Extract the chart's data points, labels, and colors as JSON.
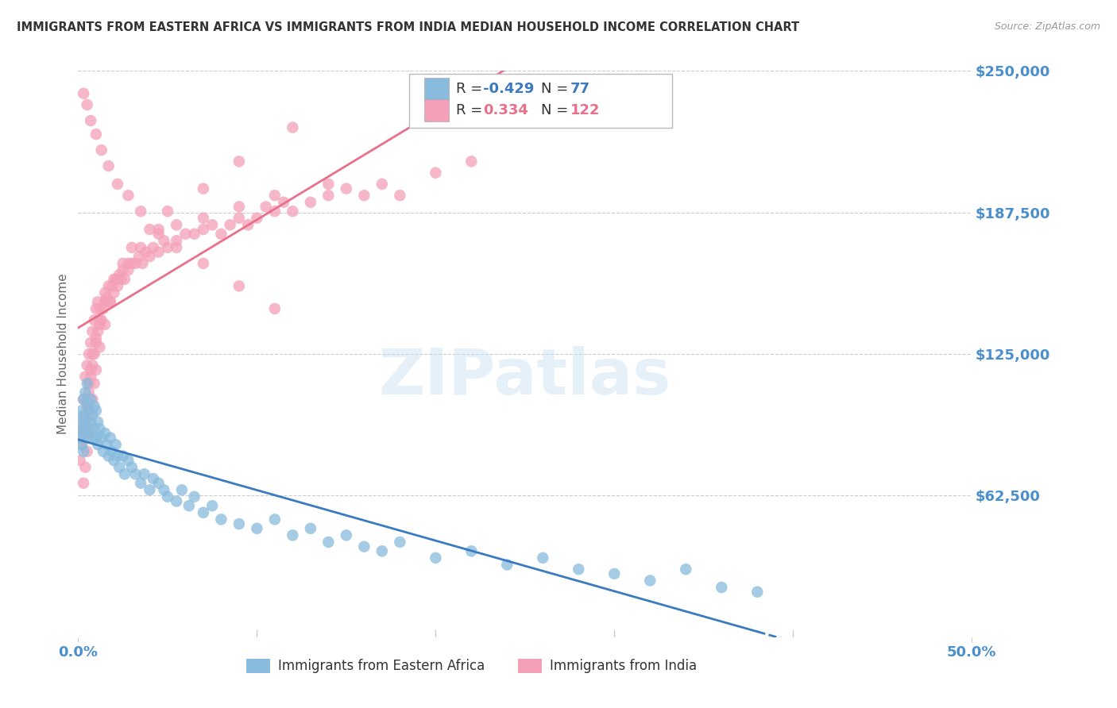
{
  "title": "IMMIGRANTS FROM EASTERN AFRICA VS IMMIGRANTS FROM INDIA MEDIAN HOUSEHOLD INCOME CORRELATION CHART",
  "source": "Source: ZipAtlas.com",
  "ylabel": "Median Household Income",
  "yticks": [
    0,
    62500,
    125000,
    187500,
    250000
  ],
  "ytick_labels": [
    "",
    "$62,500",
    "$125,000",
    "$187,500",
    "$250,000"
  ],
  "xlim": [
    0.0,
    0.5
  ],
  "ylim": [
    0,
    250000
  ],
  "blue_R": -0.429,
  "blue_N": 77,
  "pink_R": 0.334,
  "pink_N": 122,
  "blue_color": "#88bbdd",
  "pink_color": "#f4a0b8",
  "blue_line_color": "#3a7abf",
  "pink_line_color": "#e8708a",
  "legend_label_blue": "Immigrants from Eastern Africa",
  "legend_label_pink": "Immigrants from India",
  "watermark": "ZIPatlas",
  "background_color": "#ffffff",
  "grid_color": "#cccccc",
  "title_color": "#333333",
  "axis_label_color": "#4a8fcc",
  "axis_tick_color": "#4a8fcc",
  "blue_scatter_x": [
    0.001,
    0.001,
    0.002,
    0.002,
    0.002,
    0.003,
    0.003,
    0.003,
    0.003,
    0.004,
    0.004,
    0.005,
    0.005,
    0.005,
    0.006,
    0.006,
    0.007,
    0.007,
    0.008,
    0.008,
    0.009,
    0.009,
    0.01,
    0.01,
    0.011,
    0.011,
    0.012,
    0.013,
    0.014,
    0.015,
    0.016,
    0.017,
    0.018,
    0.019,
    0.02,
    0.021,
    0.022,
    0.023,
    0.025,
    0.026,
    0.028,
    0.03,
    0.032,
    0.035,
    0.037,
    0.04,
    0.042,
    0.045,
    0.048,
    0.05,
    0.055,
    0.058,
    0.062,
    0.065,
    0.07,
    0.075,
    0.08,
    0.09,
    0.1,
    0.11,
    0.12,
    0.13,
    0.14,
    0.15,
    0.16,
    0.17,
    0.18,
    0.2,
    0.22,
    0.24,
    0.26,
    0.28,
    0.3,
    0.32,
    0.34,
    0.36,
    0.38
  ],
  "blue_scatter_y": [
    95000,
    88000,
    100000,
    92000,
    85000,
    105000,
    98000,
    90000,
    82000,
    108000,
    95000,
    112000,
    103000,
    88000,
    100000,
    92000,
    105000,
    95000,
    98000,
    88000,
    102000,
    92000,
    100000,
    88000,
    95000,
    85000,
    92000,
    88000,
    82000,
    90000,
    85000,
    80000,
    88000,
    82000,
    78000,
    85000,
    80000,
    75000,
    80000,
    72000,
    78000,
    75000,
    72000,
    68000,
    72000,
    65000,
    70000,
    68000,
    65000,
    62000,
    60000,
    65000,
    58000,
    62000,
    55000,
    58000,
    52000,
    50000,
    48000,
    52000,
    45000,
    48000,
    42000,
    45000,
    40000,
    38000,
    42000,
    35000,
    38000,
    32000,
    35000,
    30000,
    28000,
    25000,
    30000,
    22000,
    20000
  ],
  "pink_scatter_x": [
    0.001,
    0.002,
    0.003,
    0.003,
    0.004,
    0.004,
    0.005,
    0.005,
    0.006,
    0.006,
    0.007,
    0.007,
    0.008,
    0.008,
    0.009,
    0.009,
    0.01,
    0.01,
    0.011,
    0.011,
    0.012,
    0.012,
    0.013,
    0.014,
    0.015,
    0.015,
    0.016,
    0.017,
    0.018,
    0.019,
    0.02,
    0.021,
    0.022,
    0.023,
    0.024,
    0.025,
    0.026,
    0.028,
    0.03,
    0.032,
    0.034,
    0.036,
    0.038,
    0.04,
    0.042,
    0.045,
    0.048,
    0.05,
    0.055,
    0.06,
    0.065,
    0.07,
    0.075,
    0.08,
    0.085,
    0.09,
    0.095,
    0.1,
    0.105,
    0.11,
    0.115,
    0.12,
    0.13,
    0.14,
    0.15,
    0.16,
    0.17,
    0.18,
    0.2,
    0.22,
    0.003,
    0.004,
    0.005,
    0.006,
    0.007,
    0.008,
    0.009,
    0.01,
    0.012,
    0.015,
    0.018,
    0.022,
    0.028,
    0.035,
    0.045,
    0.055,
    0.07,
    0.09,
    0.11,
    0.14,
    0.003,
    0.005,
    0.007,
    0.01,
    0.013,
    0.017,
    0.022,
    0.028,
    0.035,
    0.045,
    0.055,
    0.07,
    0.09,
    0.11,
    0.002,
    0.003,
    0.004,
    0.005,
    0.006,
    0.007,
    0.008,
    0.01,
    0.012,
    0.015,
    0.02,
    0.025,
    0.03,
    0.04,
    0.05,
    0.07,
    0.09,
    0.12
  ],
  "pink_scatter_y": [
    78000,
    88000,
    95000,
    105000,
    92000,
    115000,
    102000,
    120000,
    108000,
    125000,
    115000,
    130000,
    120000,
    135000,
    125000,
    140000,
    130000,
    145000,
    135000,
    148000,
    138000,
    145000,
    140000,
    145000,
    148000,
    152000,
    150000,
    155000,
    148000,
    155000,
    152000,
    158000,
    155000,
    160000,
    158000,
    162000,
    158000,
    162000,
    165000,
    165000,
    168000,
    165000,
    170000,
    168000,
    172000,
    170000,
    175000,
    172000,
    175000,
    178000,
    178000,
    180000,
    182000,
    178000,
    182000,
    185000,
    182000,
    185000,
    190000,
    188000,
    192000,
    188000,
    192000,
    195000,
    198000,
    195000,
    200000,
    195000,
    205000,
    210000,
    68000,
    75000,
    82000,
    90000,
    98000,
    105000,
    112000,
    118000,
    128000,
    138000,
    148000,
    158000,
    165000,
    172000,
    178000,
    182000,
    185000,
    190000,
    195000,
    200000,
    240000,
    235000,
    228000,
    222000,
    215000,
    208000,
    200000,
    195000,
    188000,
    180000,
    172000,
    165000,
    155000,
    145000,
    85000,
    92000,
    98000,
    105000,
    112000,
    118000,
    125000,
    132000,
    140000,
    148000,
    158000,
    165000,
    172000,
    180000,
    188000,
    198000,
    210000,
    225000
  ]
}
